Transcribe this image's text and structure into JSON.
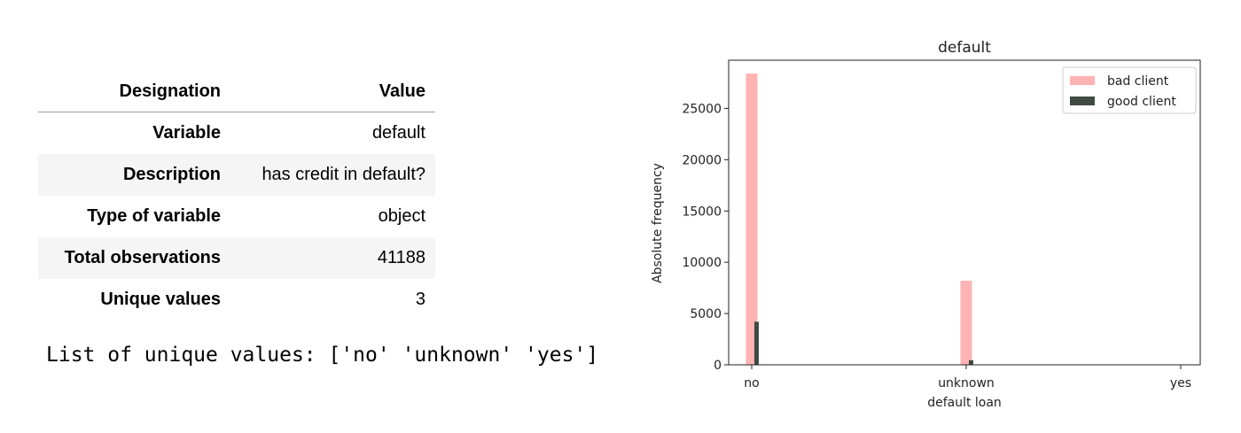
{
  "table": {
    "headers": {
      "key": "Designation",
      "value": "Value"
    },
    "rows": [
      {
        "key": "Variable",
        "value": "default"
      },
      {
        "key": "Description",
        "value": "has credit in default?"
      },
      {
        "key": "Type of variable",
        "value": "object"
      },
      {
        "key": "Total observations",
        "value": "41188"
      },
      {
        "key": "Unique values",
        "value": "3"
      }
    ]
  },
  "unique_values_text": "List of unique values: ['no' 'unknown' 'yes']",
  "chart_data": {
    "type": "bar",
    "title": "default",
    "xlabel": "default loan",
    "ylabel": "Absolute frequency",
    "categories": [
      "no",
      "unknown",
      "yes"
    ],
    "series": [
      {
        "name": "bad client",
        "color": "#ffb3b3",
        "values": [
          28400,
          8200,
          3
        ]
      },
      {
        "name": "good client",
        "color": "#3f4a42",
        "values": [
          4200,
          450,
          0
        ]
      }
    ],
    "ylim": [
      0,
      29700
    ],
    "yticks": [
      0,
      5000,
      10000,
      15000,
      20000,
      25000
    ],
    "legend": "top-right",
    "grid": false
  }
}
